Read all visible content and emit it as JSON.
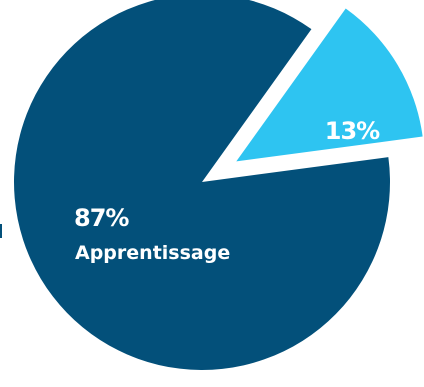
{
  "chart_data": {
    "type": "pie",
    "title": "",
    "slices": [
      {
        "label": "Apprentissage",
        "value": 87,
        "value_label": "87%",
        "color": "#03507a",
        "exploded": false
      },
      {
        "label": "",
        "value": 13,
        "value_label": "13%",
        "color": "#2ec4f1",
        "exploded": true
      }
    ],
    "legend": "none",
    "start_angle": "exploded slice centered toward upper-right"
  }
}
